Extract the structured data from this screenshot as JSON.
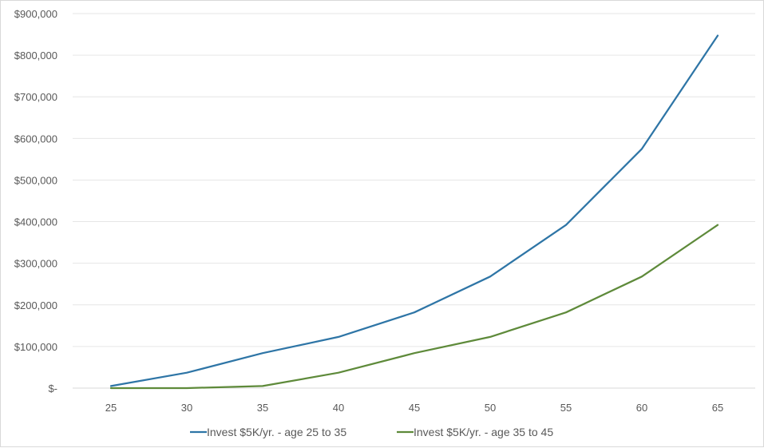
{
  "chart_data": {
    "type": "line",
    "title": "",
    "xlabel": "",
    "ylabel": "",
    "categories": [
      "25",
      "30",
      "35",
      "40",
      "45",
      "50",
      "55",
      "60",
      "65"
    ],
    "y_tick_labels": [
      "$-",
      "$100,000",
      "$200,000",
      "$300,000",
      "$400,000",
      "$500,000",
      "$600,000",
      "$700,000",
      "$800,000",
      "$900,000"
    ],
    "y_tick_values": [
      0,
      100000,
      200000,
      300000,
      400000,
      500000,
      600000,
      700000,
      800000,
      900000
    ],
    "ylim": [
      0,
      900000
    ],
    "grid": true,
    "legend_position": "bottom",
    "series": [
      {
        "name": "Invest $5K/yr. - age 25 to 35",
        "color": "#2e75a6",
        "values": [
          5000,
          37000,
          84000,
          123000,
          182000,
          268000,
          392000,
          575000,
          847000
        ]
      },
      {
        "name": "Invest $5K/yr. - age 35 to 45",
        "color": "#5e8a3a",
        "values": [
          0,
          0,
          5000,
          37000,
          84000,
          123000,
          182000,
          268000,
          392000
        ]
      }
    ]
  }
}
